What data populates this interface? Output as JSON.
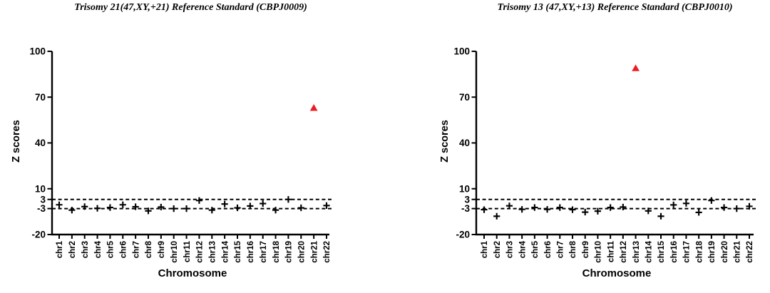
{
  "chart_data": [
    {
      "type": "scatter",
      "title": "Trisomy 21(47,XY,+21) Reference Standard (CBPJ0009)",
      "xlabel": "Chromosome",
      "ylabel": "Z scores",
      "categories": [
        "chr1",
        "chr2",
        "chr3",
        "chr4",
        "chr5",
        "chr6",
        "chr7",
        "chr8",
        "chr9",
        "chr10",
        "chr11",
        "chr12",
        "chr13",
        "chr14",
        "chr15",
        "chr16",
        "chr17",
        "chr18",
        "chr19",
        "chr20",
        "chr21",
        "chr22"
      ],
      "values": [
        -0.5,
        -4,
        -1.7,
        -2.8,
        -2.3,
        -0.5,
        -1.8,
        -4.5,
        -2,
        -3,
        -3,
        2.3,
        -4,
        0,
        -2.5,
        -1.3,
        0.3,
        -4,
        3,
        -2.5,
        63,
        -1
      ],
      "outlier": {
        "category": "chr21",
        "value": 63,
        "marker": "triangle",
        "color": "#ed1c24"
      },
      "marker": "plus",
      "marker_color": "#000000",
      "yticks": [
        100,
        70,
        40,
        10,
        3,
        -3,
        -20
      ],
      "ylim": [
        -20,
        100
      ],
      "threshold_lines": [
        3,
        -3
      ],
      "threshold_style": "dashed",
      "grid": false
    },
    {
      "type": "scatter",
      "title": "Trisomy 13 (47,XY,+13) Reference Standard (CBPJ0010)",
      "xlabel": "Chromosome",
      "ylabel": "Z scores",
      "categories": [
        "chr1",
        "chr2",
        "chr3",
        "chr4",
        "chr5",
        "chr6",
        "chr7",
        "chr8",
        "chr9",
        "chr10",
        "chr11",
        "chr12",
        "chr13",
        "chr14",
        "chr15",
        "chr16",
        "chr17",
        "chr18",
        "chr19",
        "chr20",
        "chr21",
        "chr22"
      ],
      "values": [
        -3.7,
        -8,
        -1.2,
        -3.5,
        -2.3,
        -3.5,
        -2.3,
        -3.7,
        -5.3,
        -4.7,
        -2.3,
        -2,
        89,
        -4.5,
        -8,
        -0.6,
        0.4,
        -5.5,
        2.3,
        -2.3,
        -3,
        -1.5
      ],
      "outlier": {
        "category": "chr13",
        "value": 89,
        "marker": "triangle",
        "color": "#ed1c24"
      },
      "marker": "plus",
      "marker_color": "#000000",
      "yticks": [
        100,
        70,
        40,
        10,
        3,
        -3,
        -20
      ],
      "ylim": [
        -20,
        100
      ],
      "threshold_lines": [
        3,
        -3
      ],
      "threshold_style": "dashed",
      "grid": false
    }
  ]
}
